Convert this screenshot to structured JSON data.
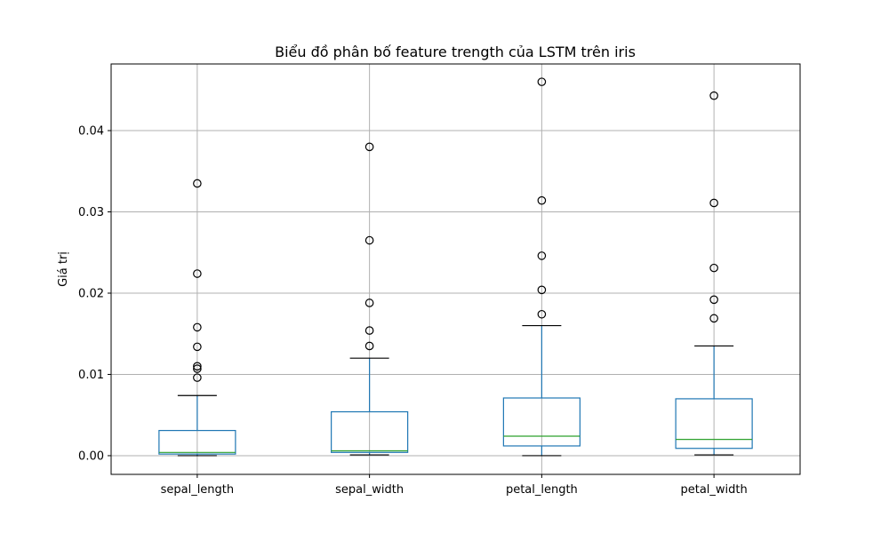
{
  "chart_data": {
    "type": "box",
    "title": "Biểu đồ phân bố feature trength của LSTM trên iris",
    "xlabel": "",
    "ylabel": "Giá trị",
    "categories": [
      "sepal_length",
      "sepal_width",
      "petal_length",
      "petal_width"
    ],
    "ylim": [
      -0.0023,
      0.0482
    ],
    "yticks": [
      0.0,
      0.01,
      0.02,
      0.03,
      0.04
    ],
    "ytick_labels": [
      "0.00",
      "0.01",
      "0.02",
      "0.03",
      "0.04"
    ],
    "grid": true,
    "boxes": [
      {
        "category": "sepal_length",
        "whisker_low": 0.0,
        "q1": 0.0002,
        "median": 0.0004,
        "q3": 0.0031,
        "whisker_high": 0.0074,
        "outliers": [
          0.0096,
          0.0107,
          0.011,
          0.0134,
          0.0158,
          0.0224,
          0.0335
        ]
      },
      {
        "category": "sepal_width",
        "whisker_low": 0.0001,
        "q1": 0.0004,
        "median": 0.0006,
        "q3": 0.0054,
        "whisker_high": 0.012,
        "outliers": [
          0.0135,
          0.0154,
          0.0188,
          0.0265,
          0.038
        ]
      },
      {
        "category": "petal_length",
        "whisker_low": 0.0,
        "q1": 0.0012,
        "median": 0.0024,
        "q3": 0.0071,
        "whisker_high": 0.016,
        "outliers": [
          0.0174,
          0.0204,
          0.0246,
          0.0314,
          0.046
        ]
      },
      {
        "category": "petal_width",
        "whisker_low": 0.0001,
        "q1": 0.0009,
        "median": 0.002,
        "q3": 0.007,
        "whisker_high": 0.0135,
        "outliers": [
          0.0169,
          0.0192,
          0.0231,
          0.0311,
          0.0443
        ]
      }
    ],
    "colors": {
      "box": "#1f77b4",
      "median": "#2ca02c",
      "whisker": "#1f77b4",
      "cap": "#000000",
      "outlier": "#000000",
      "grid": "#b0b0b0"
    }
  }
}
